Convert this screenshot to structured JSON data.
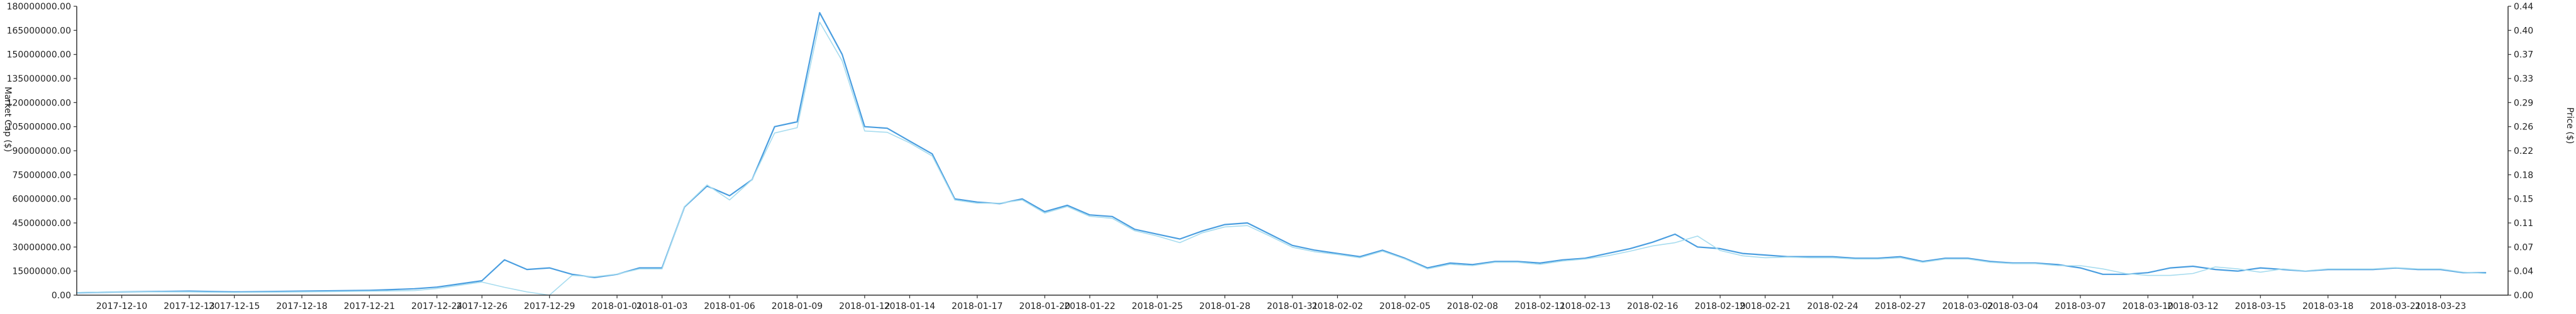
{
  "chart_data": {
    "type": "line",
    "y_left_label": "Market Cap ($)",
    "y_right_label": "Price ($)",
    "y_left_ticks": [
      "0.00",
      "15000000.00",
      "30000000.00",
      "45000000.00",
      "60000000.00",
      "75000000.00",
      "90000000.00",
      "105000000.00",
      "120000000.00",
      "135000000.00",
      "150000000.00",
      "165000000.00",
      "180000000.00"
    ],
    "y_right_ticks": [
      "0.00",
      "0.04",
      "0.07",
      "0.11",
      "0.15",
      "0.18",
      "0.22",
      "0.26",
      "0.29",
      "0.33",
      "0.37",
      "0.40",
      "0.44"
    ],
    "ylim_left": [
      0,
      180000000
    ],
    "ylim_right": [
      0,
      0.44
    ],
    "xlim": [
      "2017-12-08",
      "2018-03-26"
    ],
    "x_tick_labels": [
      "2017-12-10",
      "2017-12-13",
      "2017-12-15",
      "2017-12-18",
      "2017-12-21",
      "2017-12-24",
      "2017-12-26",
      "2017-12-29",
      "2018-01-01",
      "2018-01-03",
      "2018-01-06",
      "2018-01-09",
      "2018-01-12",
      "2018-01-14",
      "2018-01-17",
      "2018-01-20",
      "2018-01-22",
      "2018-01-25",
      "2018-01-28",
      "2018-01-31",
      "2018-02-02",
      "2018-02-05",
      "2018-02-08",
      "2018-02-11",
      "2018-02-13",
      "2018-02-16",
      "2018-02-19",
      "2018-02-21",
      "2018-02-24",
      "2018-02-27",
      "2018-03-02",
      "2018-03-04",
      "2018-03-07",
      "2018-03-10",
      "2018-03-12",
      "2018-03-15",
      "2018-03-18",
      "2018-03-21",
      "2018-03-23"
    ],
    "series": [
      {
        "axis": "left",
        "color": "#4a9ee0",
        "points": [
          [
            "2017-12-08",
            1500000
          ],
          [
            "2017-12-10",
            2000000
          ],
          [
            "2017-12-13",
            2500000
          ],
          [
            "2017-12-15",
            2000000
          ],
          [
            "2017-12-18",
            2500000
          ],
          [
            "2017-12-21",
            3000000
          ],
          [
            "2017-12-22",
            3500000
          ],
          [
            "2017-12-23",
            4000000
          ],
          [
            "2017-12-24",
            5000000
          ],
          [
            "2017-12-25",
            7000000
          ],
          [
            "2017-12-26",
            9000000
          ],
          [
            "2017-12-27",
            22000000
          ],
          [
            "2017-12-28",
            16000000
          ],
          [
            "2017-12-29",
            17000000
          ],
          [
            "2017-12-30",
            13000000
          ],
          [
            "2017-12-31",
            11000000
          ],
          [
            "2018-01-01",
            13000000
          ],
          [
            "2018-01-02",
            17000000
          ],
          [
            "2018-01-03",
            17000000
          ],
          [
            "2018-01-04",
            55000000
          ],
          [
            "2018-01-05",
            68000000
          ],
          [
            "2018-01-06",
            62000000
          ],
          [
            "2018-01-07",
            72000000
          ],
          [
            "2018-01-08",
            105000000
          ],
          [
            "2018-01-09",
            108000000
          ],
          [
            "2018-01-10",
            176000000
          ],
          [
            "2018-01-11",
            150000000
          ],
          [
            "2018-01-12",
            105000000
          ],
          [
            "2018-01-13",
            104000000
          ],
          [
            "2018-01-14",
            96000000
          ],
          [
            "2018-01-15",
            88000000
          ],
          [
            "2018-01-16",
            60000000
          ],
          [
            "2018-01-17",
            58000000
          ],
          [
            "2018-01-18",
            57000000
          ],
          [
            "2018-01-19",
            60000000
          ],
          [
            "2018-01-20",
            52000000
          ],
          [
            "2018-01-21",
            56000000
          ],
          [
            "2018-01-22",
            50000000
          ],
          [
            "2018-01-23",
            49000000
          ],
          [
            "2018-01-24",
            41000000
          ],
          [
            "2018-01-25",
            38000000
          ],
          [
            "2018-01-26",
            35000000
          ],
          [
            "2018-01-27",
            40000000
          ],
          [
            "2018-01-28",
            44000000
          ],
          [
            "2018-01-29",
            45000000
          ],
          [
            "2018-01-30",
            38000000
          ],
          [
            "2018-01-31",
            31000000
          ],
          [
            "2018-02-01",
            28000000
          ],
          [
            "2018-02-02",
            26000000
          ],
          [
            "2018-02-03",
            24000000
          ],
          [
            "2018-02-04",
            28000000
          ],
          [
            "2018-02-05",
            23000000
          ],
          [
            "2018-02-06",
            17000000
          ],
          [
            "2018-02-07",
            20000000
          ],
          [
            "2018-02-08",
            19000000
          ],
          [
            "2018-02-09",
            21000000
          ],
          [
            "2018-02-10",
            21000000
          ],
          [
            "2018-02-11",
            20000000
          ],
          [
            "2018-02-12",
            22000000
          ],
          [
            "2018-02-13",
            23000000
          ],
          [
            "2018-02-14",
            26000000
          ],
          [
            "2018-02-15",
            29000000
          ],
          [
            "2018-02-16",
            33000000
          ],
          [
            "2018-02-17",
            38000000
          ],
          [
            "2018-02-18",
            30000000
          ],
          [
            "2018-02-19",
            29000000
          ],
          [
            "2018-02-20",
            26000000
          ],
          [
            "2018-02-21",
            25000000
          ],
          [
            "2018-02-22",
            24000000
          ],
          [
            "2018-02-23",
            24000000
          ],
          [
            "2018-02-24",
            24000000
          ],
          [
            "2018-02-25",
            23000000
          ],
          [
            "2018-02-26",
            23000000
          ],
          [
            "2018-02-27",
            24000000
          ],
          [
            "2018-02-28",
            21000000
          ],
          [
            "2018-03-01",
            23000000
          ],
          [
            "2018-03-02",
            23000000
          ],
          [
            "2018-03-03",
            21000000
          ],
          [
            "2018-03-04",
            20000000
          ],
          [
            "2018-03-05",
            20000000
          ],
          [
            "2018-03-06",
            19000000
          ],
          [
            "2018-03-07",
            17000000
          ],
          [
            "2018-03-08",
            13000000
          ],
          [
            "2018-03-09",
            13000000
          ],
          [
            "2018-03-10",
            14000000
          ],
          [
            "2018-03-11",
            17000000
          ],
          [
            "2018-03-12",
            18000000
          ],
          [
            "2018-03-13",
            16000000
          ],
          [
            "2018-03-14",
            15000000
          ],
          [
            "2018-03-15",
            17000000
          ],
          [
            "2018-03-16",
            16000000
          ],
          [
            "2018-03-17",
            15000000
          ],
          [
            "2018-03-18",
            16000000
          ],
          [
            "2018-03-19",
            16000000
          ],
          [
            "2018-03-20",
            16000000
          ],
          [
            "2018-03-21",
            17000000
          ],
          [
            "2018-03-22",
            16000000
          ],
          [
            "2018-03-23",
            16000000
          ],
          [
            "2018-03-24",
            14000000
          ],
          [
            "2018-03-25",
            14000000
          ]
        ]
      },
      {
        "axis": "right",
        "color": "#a7dcef",
        "points": [
          [
            "2017-12-08",
            0.004
          ],
          [
            "2017-12-10",
            0.005
          ],
          [
            "2017-12-13",
            0.005
          ],
          [
            "2017-12-15",
            0.004
          ],
          [
            "2017-12-18",
            0.005
          ],
          [
            "2017-12-21",
            0.006
          ],
          [
            "2017-12-23",
            0.007
          ],
          [
            "2017-12-24",
            0.01
          ],
          [
            "2017-12-25",
            0.015
          ],
          [
            "2017-12-26",
            0.02
          ],
          [
            "2017-12-27",
            0.012
          ],
          [
            "2017-12-28",
            0.005
          ],
          [
            "2017-12-29",
            0.0
          ],
          [
            "2017-12-30",
            0.03
          ],
          [
            "2017-12-31",
            0.028
          ],
          [
            "2018-01-01",
            0.032
          ],
          [
            "2018-01-02",
            0.04
          ],
          [
            "2018-01-03",
            0.04
          ],
          [
            "2018-01-04",
            0.135
          ],
          [
            "2018-01-05",
            0.168
          ],
          [
            "2018-01-06",
            0.145
          ],
          [
            "2018-01-07",
            0.176
          ],
          [
            "2018-01-08",
            0.247
          ],
          [
            "2018-01-09",
            0.255
          ],
          [
            "2018-01-10",
            0.416
          ],
          [
            "2018-01-11",
            0.357
          ],
          [
            "2018-01-12",
            0.25
          ],
          [
            "2018-01-13",
            0.248
          ],
          [
            "2018-01-14",
            0.232
          ],
          [
            "2018-01-15",
            0.212
          ],
          [
            "2018-01-16",
            0.145
          ],
          [
            "2018-01-17",
            0.14
          ],
          [
            "2018-01-18",
            0.14
          ],
          [
            "2018-01-19",
            0.145
          ],
          [
            "2018-01-20",
            0.125
          ],
          [
            "2018-01-21",
            0.135
          ],
          [
            "2018-01-22",
            0.12
          ],
          [
            "2018-01-23",
            0.117
          ],
          [
            "2018-01-24",
            0.098
          ],
          [
            "2018-01-25",
            0.09
          ],
          [
            "2018-01-26",
            0.08
          ],
          [
            "2018-01-27",
            0.095
          ],
          [
            "2018-01-28",
            0.104
          ],
          [
            "2018-01-29",
            0.106
          ],
          [
            "2018-01-30",
            0.09
          ],
          [
            "2018-01-31",
            0.073
          ],
          [
            "2018-02-01",
            0.066
          ],
          [
            "2018-02-02",
            0.062
          ],
          [
            "2018-02-03",
            0.057
          ],
          [
            "2018-02-04",
            0.067
          ],
          [
            "2018-02-05",
            0.055
          ],
          [
            "2018-02-06",
            0.04
          ],
          [
            "2018-02-07",
            0.047
          ],
          [
            "2018-02-08",
            0.045
          ],
          [
            "2018-02-09",
            0.05
          ],
          [
            "2018-02-10",
            0.05
          ],
          [
            "2018-02-11",
            0.047
          ],
          [
            "2018-02-12",
            0.052
          ],
          [
            "2018-02-13",
            0.055
          ],
          [
            "2018-02-14",
            0.06
          ],
          [
            "2018-02-15",
            0.067
          ],
          [
            "2018-02-16",
            0.075
          ],
          [
            "2018-02-17",
            0.08
          ],
          [
            "2018-02-18",
            0.09
          ],
          [
            "2018-02-19",
            0.068
          ],
          [
            "2018-02-20",
            0.06
          ],
          [
            "2018-02-21",
            0.057
          ],
          [
            "2018-02-22",
            0.058
          ],
          [
            "2018-02-23",
            0.057
          ],
          [
            "2018-02-24",
            0.057
          ],
          [
            "2018-02-25",
            0.055
          ],
          [
            "2018-02-26",
            0.055
          ],
          [
            "2018-02-27",
            0.057
          ],
          [
            "2018-02-28",
            0.05
          ],
          [
            "2018-03-01",
            0.055
          ],
          [
            "2018-03-02",
            0.055
          ],
          [
            "2018-03-03",
            0.05
          ],
          [
            "2018-03-04",
            0.048
          ],
          [
            "2018-03-05",
            0.048
          ],
          [
            "2018-03-06",
            0.045
          ],
          [
            "2018-03-07",
            0.045
          ],
          [
            "2018-03-08",
            0.04
          ],
          [
            "2018-03-09",
            0.033
          ],
          [
            "2018-03-10",
            0.03
          ],
          [
            "2018-03-11",
            0.03
          ],
          [
            "2018-03-12",
            0.033
          ],
          [
            "2018-03-13",
            0.043
          ],
          [
            "2018-03-14",
            0.04
          ],
          [
            "2018-03-15",
            0.035
          ],
          [
            "2018-03-16",
            0.04
          ],
          [
            "2018-03-17",
            0.037
          ],
          [
            "2018-03-18",
            0.04
          ],
          [
            "2018-03-19",
            0.04
          ],
          [
            "2018-03-20",
            0.04
          ],
          [
            "2018-03-21",
            0.042
          ],
          [
            "2018-03-22",
            0.04
          ],
          [
            "2018-03-23",
            0.04
          ],
          [
            "2018-03-24",
            0.035
          ],
          [
            "2018-03-25",
            0.033
          ]
        ]
      }
    ],
    "grid": false,
    "legend": "none"
  }
}
